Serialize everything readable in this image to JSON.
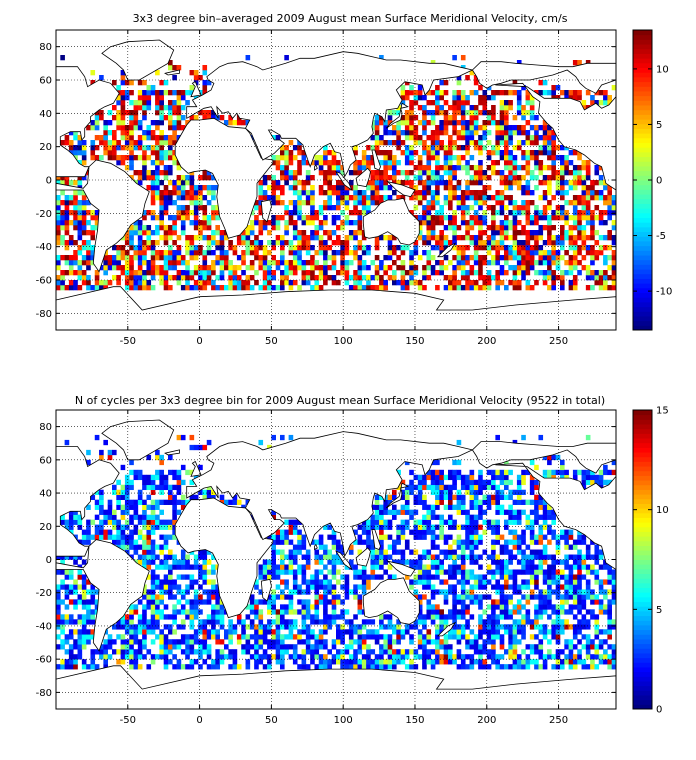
{
  "figure": {
    "background": "#ffffff"
  },
  "panels": [
    {
      "id": "velocity",
      "title": "3x3 degree bin–averaged 2009 August mean Surface Meridional Velocity, cm/s",
      "x_ticks": [
        "-50",
        "0",
        "50",
        "100",
        "150",
        "200",
        "250"
      ],
      "x_tick_values": [
        -50,
        0,
        50,
        100,
        150,
        200,
        250
      ],
      "y_ticks": [
        "80",
        "60",
        "40",
        "20",
        "0",
        "-20",
        "-40",
        "-60",
        "-80"
      ],
      "y_tick_values": [
        80,
        60,
        40,
        20,
        0,
        -20,
        -40,
        -60,
        -80
      ],
      "colorbar": {
        "ticks": [
          "10",
          "5",
          "0",
          "-5",
          "-10"
        ],
        "tick_values": [
          10,
          5,
          0,
          -5,
          -10
        ],
        "range": [
          -13.5,
          13.5
        ],
        "colormap": "jet"
      }
    },
    {
      "id": "count",
      "title": "N of cycles per 3x3 degree bin for 2009 August mean Surface Meridional Velocity (9522 in total)",
      "x_ticks": [
        "-50",
        "0",
        "50",
        "100",
        "150",
        "200",
        "250"
      ],
      "x_tick_values": [
        -50,
        0,
        50,
        100,
        150,
        200,
        250
      ],
      "y_ticks": [
        "80",
        "60",
        "40",
        "20",
        "0",
        "-20",
        "-40",
        "-60",
        "-80"
      ],
      "y_tick_values": [
        80,
        60,
        40,
        20,
        0,
        -20,
        -40,
        -60,
        -80
      ],
      "colorbar": {
        "ticks": [
          "15",
          "10",
          "5",
          "0"
        ],
        "tick_values": [
          15,
          10,
          5,
          0
        ],
        "range": [
          0,
          15
        ],
        "colormap": "jet"
      }
    }
  ],
  "chart_data": [
    {
      "type": "heatmap",
      "title": "3x3 degree bin–averaged 2009 August mean Surface Meridional Velocity, cm/s",
      "xlabel": "",
      "ylabel": "",
      "xlim": [
        -100,
        290
      ],
      "ylim": [
        -90,
        90
      ],
      "bin_size_deg": 3,
      "grid": true,
      "colorbar_range": [
        -13.5,
        13.5
      ],
      "note_values": "per-bin values are dense; rendered as scattered colored 3x3 degree cells over ocean areas"
    },
    {
      "type": "heatmap",
      "title": "N of cycles per 3x3 degree bin for 2009 August mean Surface Meridional Velocity (9522 in total)",
      "xlabel": "",
      "ylabel": "",
      "xlim": [
        -100,
        290
      ],
      "ylim": [
        -90,
        90
      ],
      "bin_size_deg": 3,
      "grid": true,
      "colorbar_range": [
        0,
        15
      ],
      "total": 9522
    }
  ]
}
